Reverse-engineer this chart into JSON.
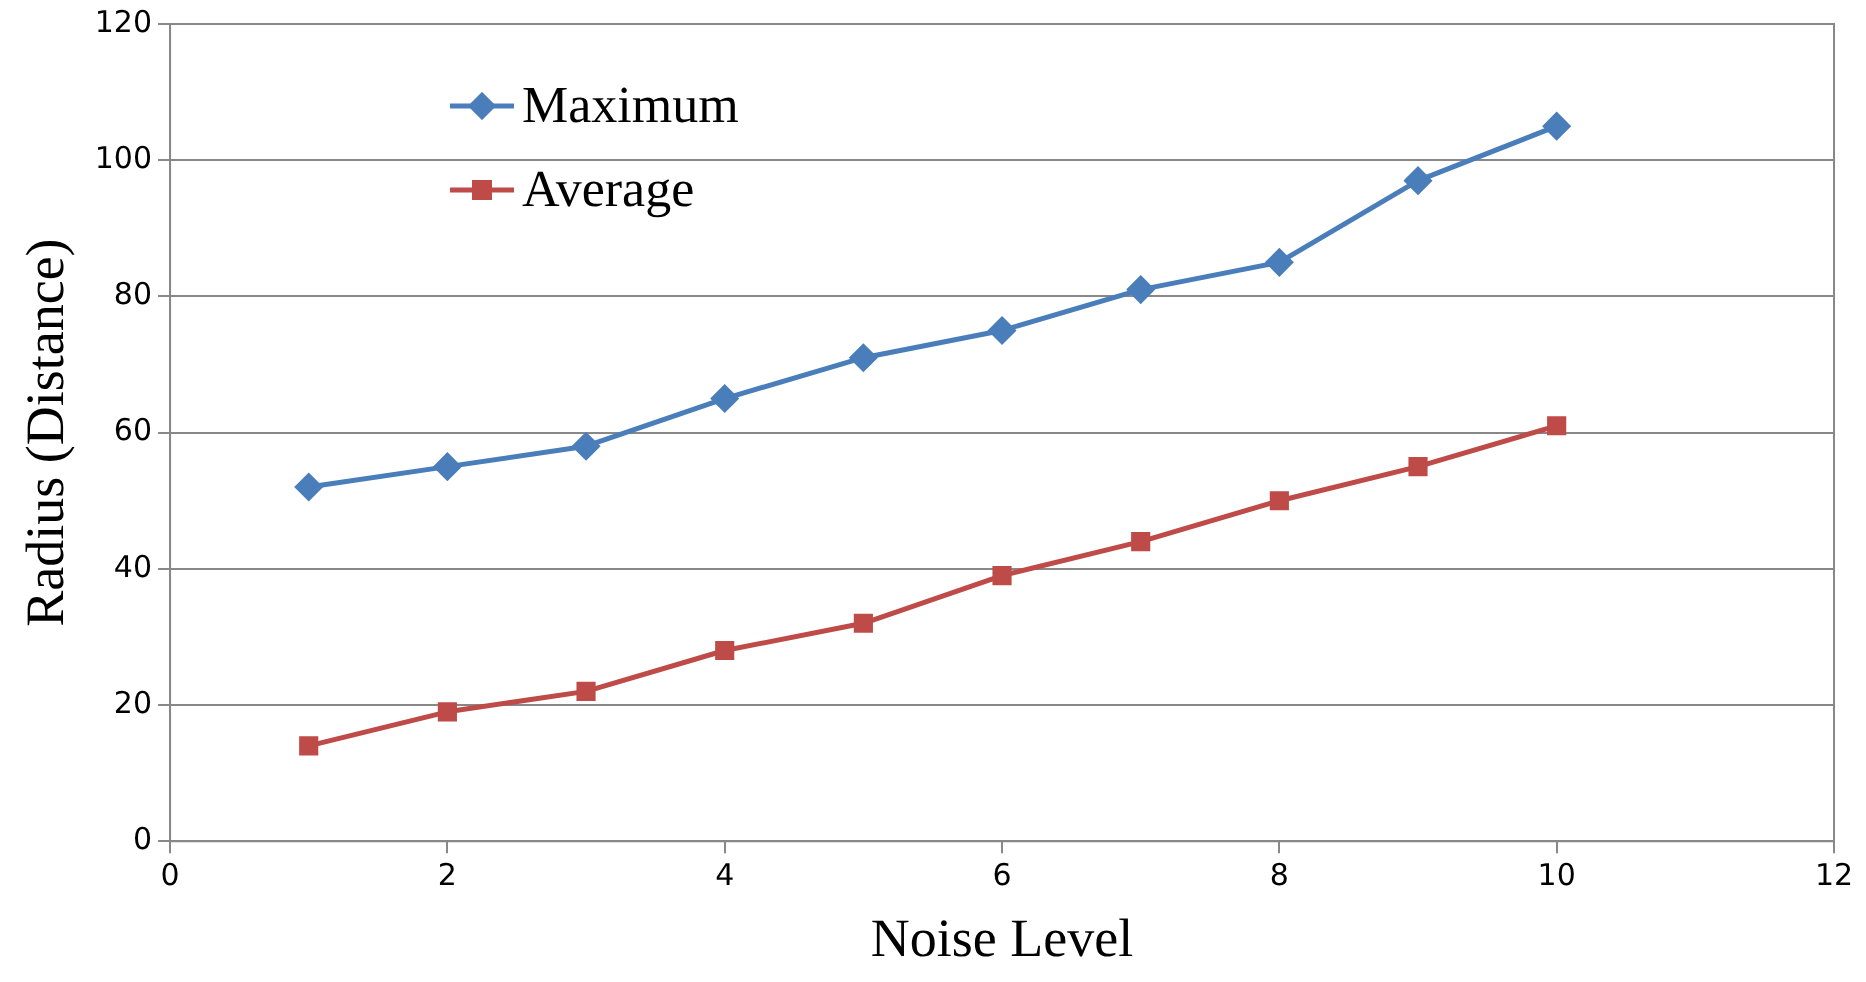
{
  "chart_data": {
    "type": "line",
    "xlabel": "Noise Level",
    "ylabel": "Radius (Distance)",
    "x": [
      1,
      2,
      3,
      4,
      5,
      6,
      7,
      8,
      9,
      10
    ],
    "series": [
      {
        "name": "Maximum",
        "color": "#4a7ebb",
        "marker": "diamond",
        "values": [
          52,
          55,
          58,
          65,
          71,
          75,
          81,
          85,
          97,
          105
        ]
      },
      {
        "name": "Average",
        "color": "#be4b48",
        "marker": "square",
        "values": [
          14,
          19,
          22,
          28,
          32,
          39,
          44,
          50,
          55,
          61
        ]
      }
    ],
    "xlim": [
      0,
      12
    ],
    "xticks": [
      0,
      2,
      4,
      6,
      8,
      10,
      12
    ],
    "ylim": [
      0,
      120
    ],
    "yticks": [
      0,
      20,
      40,
      60,
      80,
      100,
      120
    ],
    "grid": "y",
    "legend": "top left",
    "line_style": "solid"
  }
}
